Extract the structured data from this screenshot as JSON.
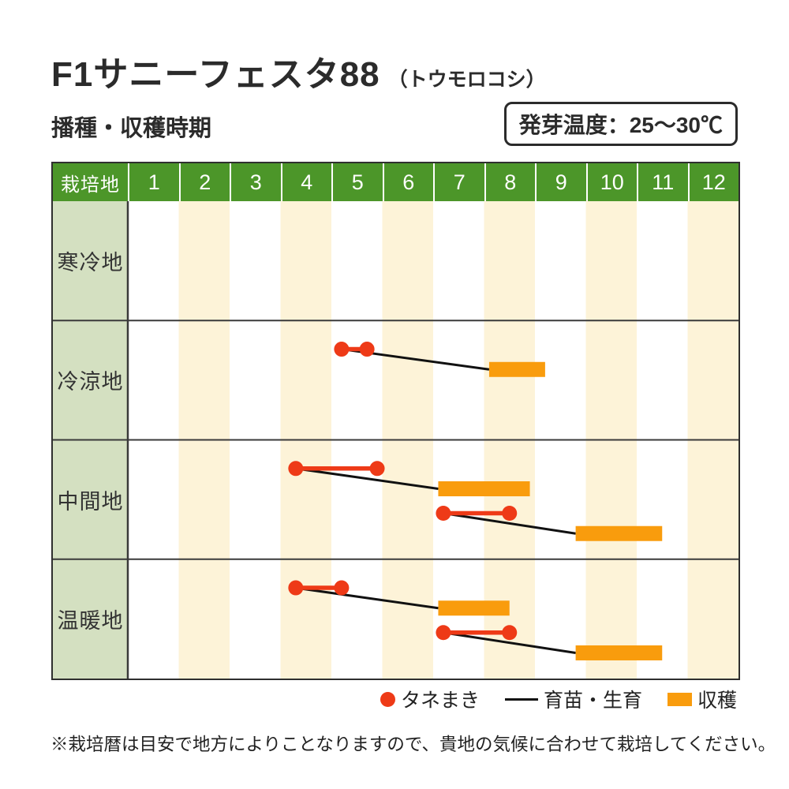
{
  "page": {
    "title": "F1サニーフェスタ88",
    "title_note": "（トウモロコシ）",
    "germination": "発芽温度：25～30℃",
    "section_heading": "播種・収穫時期",
    "footnote": "※栽培暦は目安で地方によりことなりますので、貴地の気候に合わせて栽培してください。"
  },
  "colors": {
    "header_green": "#4c9629",
    "label_green": "#d4e0c1",
    "stripe_cream": "#fdf3d8",
    "sowing_red": "#ee3a17",
    "harvest_orange": "#f99c0d",
    "growth_black": "#111111",
    "grid_dark": "#3a3a3a"
  },
  "chart_data": {
    "type": "gantt-calendar",
    "title": "播種・収穫時期",
    "x_axis": {
      "label": "栽培地",
      "months": [
        "1",
        "2",
        "3",
        "4",
        "5",
        "6",
        "7",
        "8",
        "9",
        "10",
        "11",
        "12"
      ],
      "range_months": [
        1,
        13
      ],
      "grid": "alternating month stripes, even months shaded cream"
    },
    "legend_position": "bottom-right",
    "legend": [
      {
        "marker": "dot",
        "label": "タネまき"
      },
      {
        "marker": "line",
        "label": "育苗・生育"
      },
      {
        "marker": "bar",
        "label": "収穫"
      }
    ],
    "rows": [
      {
        "label": "寒冷地",
        "tracks": []
      },
      {
        "label": "冷涼地",
        "tracks": [
          {
            "sowing_start_month": 5.2,
            "sowing_end_month": 5.7,
            "harvest_start_month": 8.1,
            "harvest_end_month": 9.2
          }
        ]
      },
      {
        "label": "中間地",
        "tracks": [
          {
            "sowing_start_month": 4.3,
            "sowing_end_month": 5.9,
            "harvest_start_month": 7.1,
            "harvest_end_month": 8.9
          },
          {
            "sowing_start_month": 7.2,
            "sowing_end_month": 8.5,
            "harvest_start_month": 9.8,
            "harvest_end_month": 11.5
          }
        ]
      },
      {
        "label": "温暖地",
        "tracks": [
          {
            "sowing_start_month": 4.3,
            "sowing_end_month": 5.2,
            "harvest_start_month": 7.1,
            "harvest_end_month": 8.5
          },
          {
            "sowing_start_month": 7.2,
            "sowing_end_month": 8.5,
            "harvest_start_month": 9.8,
            "harvest_end_month": 11.5
          }
        ]
      }
    ]
  }
}
